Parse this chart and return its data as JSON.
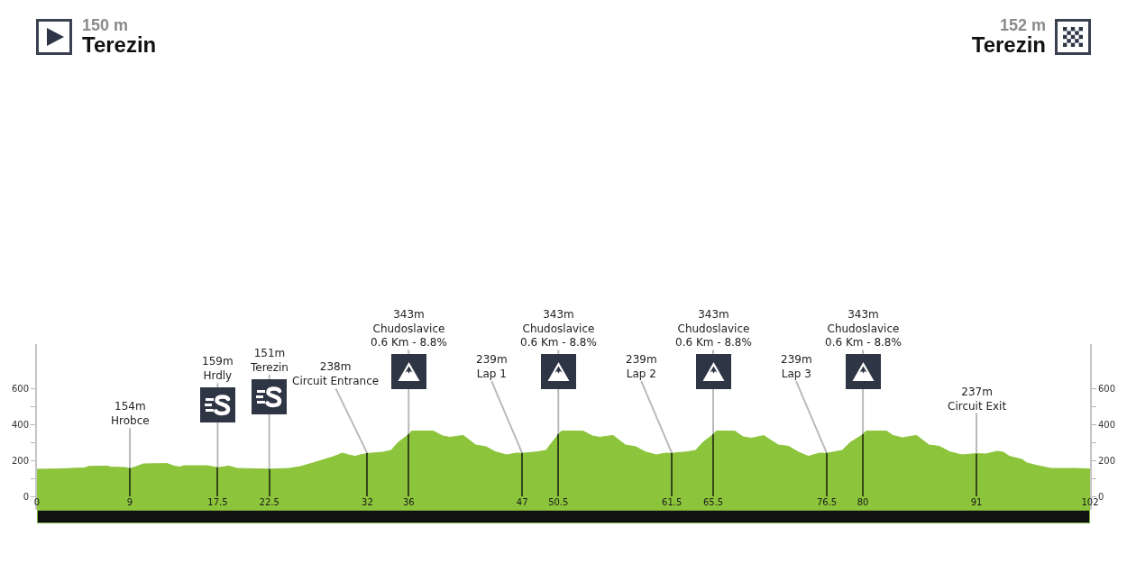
{
  "chart_data": {
    "type": "area",
    "x": [
      0,
      2,
      4.6,
      5,
      6.8,
      7.2,
      8.6,
      9,
      9.6,
      10.3,
      12.6,
      13.3,
      13.8,
      14.3,
      16.5,
      17.5,
      18.6,
      19.4,
      22.5,
      24.4,
      25.5,
      27,
      28.7,
      29.6,
      30.2,
      30.8,
      31.3,
      32,
      33.5,
      34.3,
      35,
      36,
      36.3,
      38.4,
      39.3,
      40,
      41.3,
      42.5,
      43.5,
      44.4,
      45.5,
      46.4,
      47,
      48.5,
      49.3,
      49.9,
      50.5,
      50.8,
      52.9,
      53.8,
      54.5,
      55.8,
      57,
      58,
      58.9,
      60,
      60.9,
      61.5,
      63,
      63.8,
      64.5,
      65.5,
      65.8,
      67.6,
      68.4,
      69.2,
      70.4,
      71.8,
      72.8,
      73.7,
      74.7,
      75.8,
      76.5,
      78,
      78.8,
      80,
      80.3,
      82.3,
      82.9,
      83.8,
      85.2,
      86.4,
      87.4,
      88.4,
      89.6,
      91,
      91.9,
      93,
      93.6,
      94.2,
      95.4,
      95.9,
      96.8,
      98.2,
      100.6,
      102
    ],
    "series": [
      {
        "color": "#8cc43c",
        "values": [
          150,
          152,
          158,
          166,
          168,
          162,
          160,
          154,
          165,
          180,
          182,
          168,
          163,
          170,
          170,
          159,
          168,
          155,
          151,
          155,
          165,
          190,
          220,
          240,
          230,
          222,
          230,
          238,
          245,
          255,
          300,
          343,
          362,
          362,
          335,
          328,
          338,
          285,
          275,
          247,
          230,
          240,
          239,
          247,
          255,
          300,
          343,
          362,
          362,
          335,
          328,
          338,
          285,
          275,
          247,
          230,
          240,
          239,
          247,
          255,
          300,
          343,
          362,
          362,
          330,
          323,
          337,
          285,
          278,
          247,
          222,
          240,
          239,
          255,
          300,
          343,
          362,
          362,
          338,
          325,
          338,
          285,
          278,
          247,
          230,
          237,
          235,
          250,
          245,
          222,
          205,
          185,
          172,
          155,
          155,
          152
        ]
      },
      {
        "type": "bar",
        "axis": "y2",
        "color": "#34461a",
        "x": [
          9,
          17.5,
          22.5,
          32,
          36,
          47,
          50.5,
          61.5,
          65.5,
          76.5,
          80,
          91
        ],
        "values": [
          154,
          159,
          151,
          238,
          343,
          239,
          343,
          239,
          343,
          239,
          343,
          237
        ]
      }
    ],
    "xlim": [
      0,
      102
    ],
    "xticks": [
      0,
      9,
      17.5,
      22.5,
      32,
      36,
      47,
      50.5,
      61.5,
      65.5,
      76.5,
      80,
      91,
      102
    ],
    "ylim": [
      -75,
      845
    ],
    "yticks": [
      0,
      {
        "value": 100,
        "label": null
      },
      200,
      {
        "value": 300,
        "label": null
      },
      400,
      {
        "value": 500,
        "label": null
      },
      600
    ],
    "y2lim": [
      -75,
      845
    ],
    "y2ticks": [
      0,
      {
        "value": 100,
        "label": null
      },
      200,
      {
        "value": 300,
        "label": null
      },
      400,
      {
        "value": 500,
        "label": null
      },
      600
    ],
    "annotations": [
      "150 m",
      "Terezin",
      "152 m",
      "Terezin",
      {
        "text": "154m\nHrobce",
        "x": 9,
        "y": 154
      },
      {
        "text": "159m\nHrdly",
        "x": 17.5,
        "y": 159
      },
      {
        "text": "151m\nTerezin",
        "x": 22.5,
        "y": 151
      },
      {
        "text": "238m\nCircuit Entrance",
        "x": 32,
        "y": 238
      },
      {
        "text": "343m\nChudoslavice\n0.6 Km - 8.8%",
        "x": 36,
        "y": 343
      },
      {
        "text": "239m\nLap 1",
        "x": 47,
        "y": 239
      },
      {
        "text": "343m\nChudoslavice\n0.6 Km - 8.8%",
        "x": 50.5,
        "y": 343
      },
      {
        "text": "239m\nLap 2",
        "x": 61.5,
        "y": 239
      },
      {
        "text": "343m\nChudoslavice\n0.6 Km - 8.8%",
        "x": 65.5,
        "y": 343
      },
      {
        "text": "239m\nLap 3",
        "x": 76.5,
        "y": 239
      },
      {
        "text": "343m\nChudoslavice\n0.6 Km - 8.8%",
        "x": 80,
        "y": 343
      },
      {
        "text": "237m\nCircuit Exit",
        "x": 91,
        "y": 237
      }
    ]
  }
}
